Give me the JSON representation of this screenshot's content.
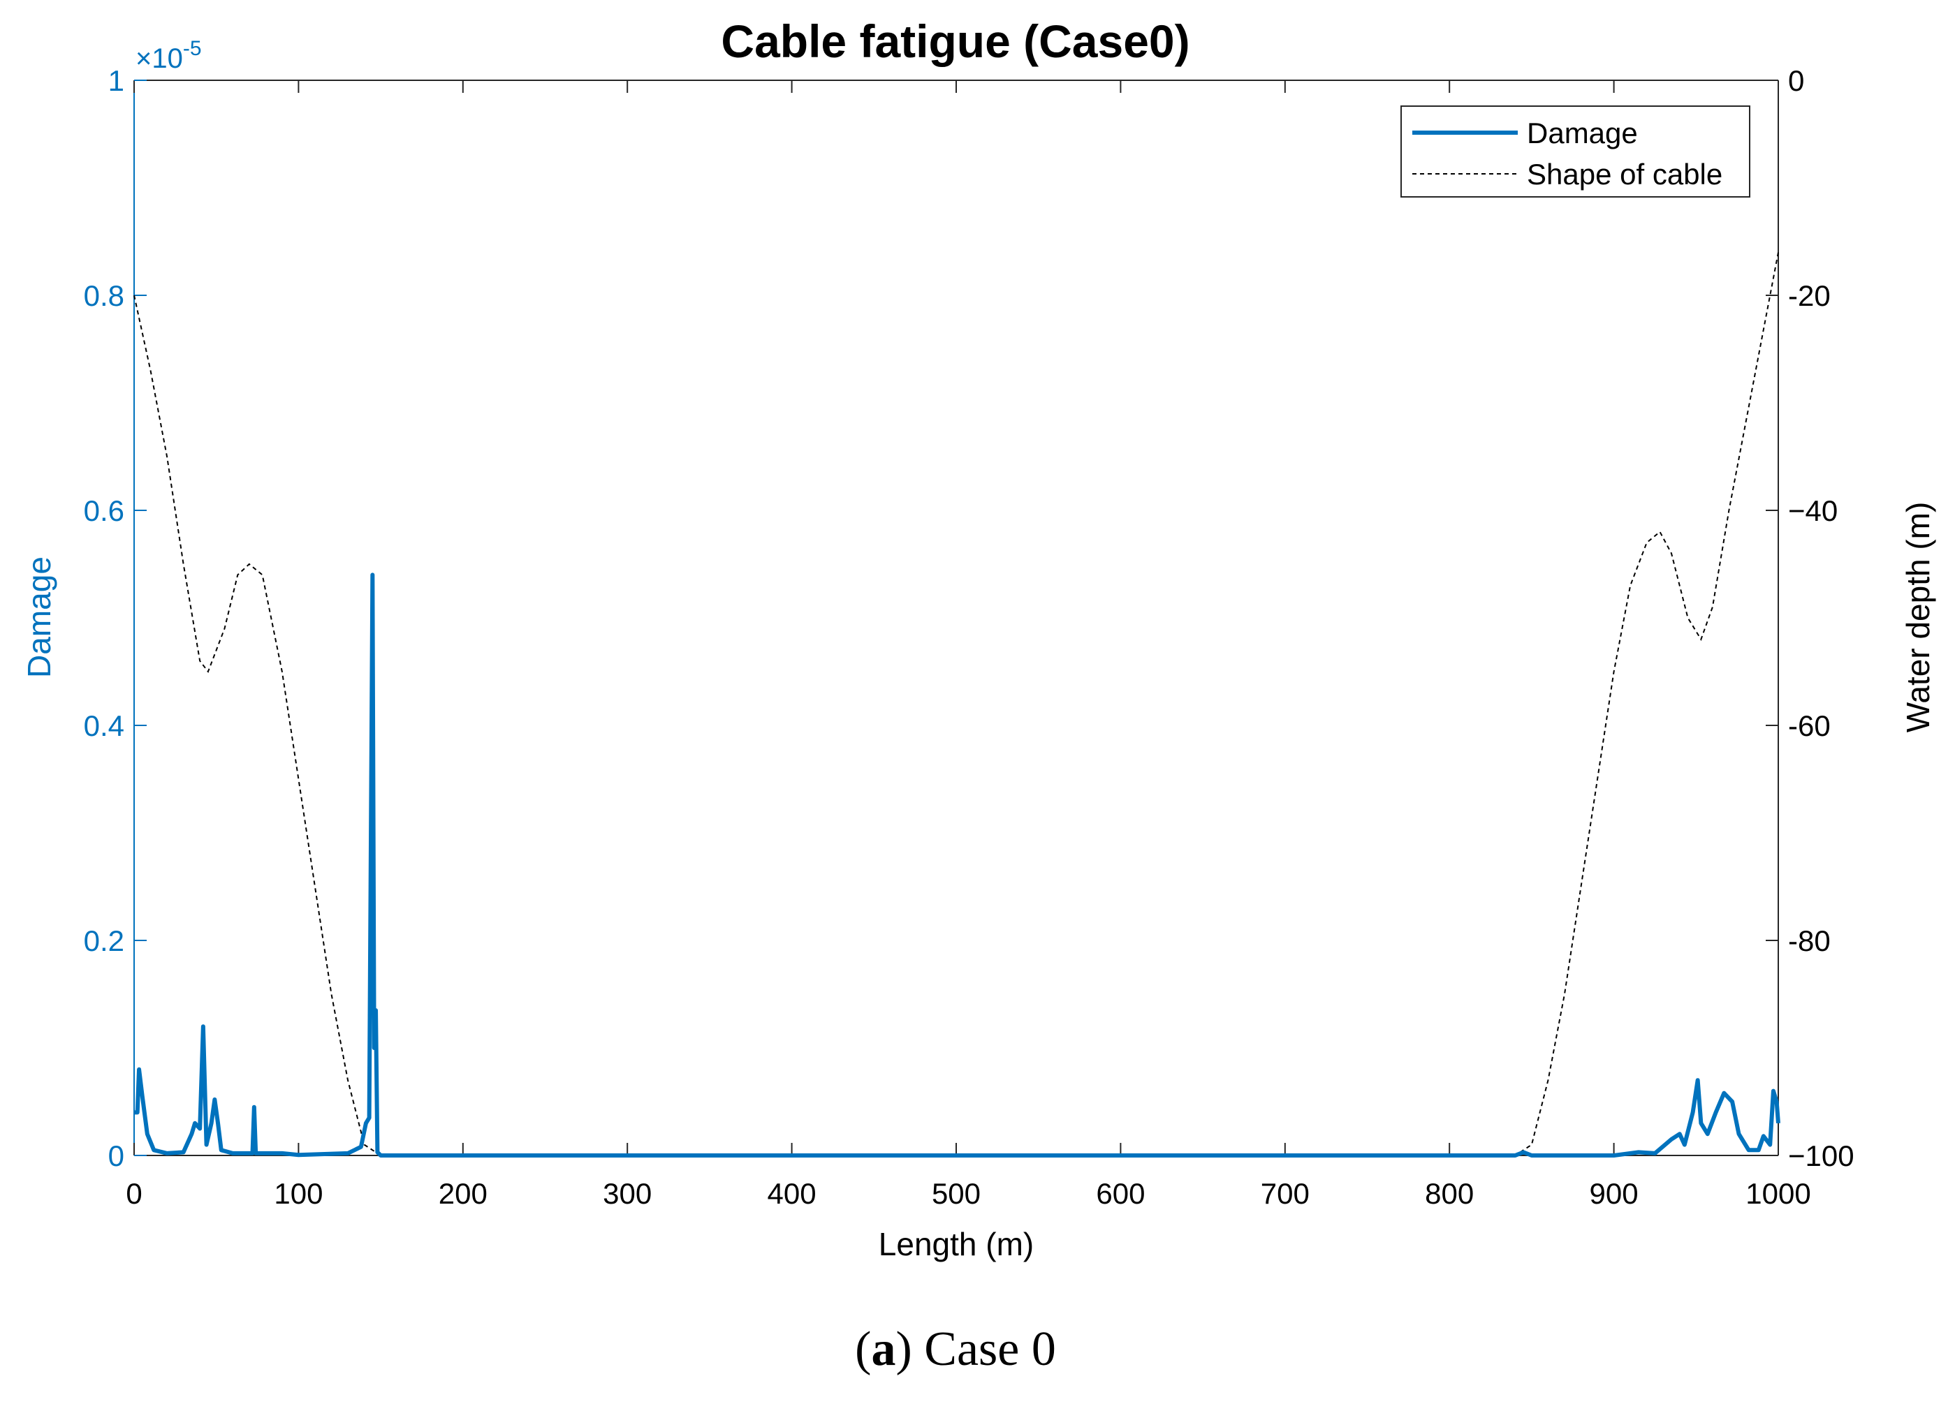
{
  "chart_data": {
    "type": "line",
    "title": "Cable fatigue (Case0)",
    "x_label": "Length (m)",
    "y_label": "Damage",
    "y2_label": "Water depth (m)",
    "y_multiplier": {
      "base": "×10",
      "exponent": "-5"
    },
    "caption_parts": [
      "(",
      "a",
      ") Case 0"
    ],
    "xlim": [
      0,
      1000
    ],
    "xticks": [
      0,
      100,
      200,
      300,
      400,
      500,
      600,
      700,
      800,
      900,
      1000
    ],
    "ylim": [
      0,
      1
    ],
    "yticks": [
      0,
      0.2,
      0.4,
      0.6,
      0.8,
      1
    ],
    "y2lim": [
      -100,
      0
    ],
    "y2ticks": [
      {
        "value": -100,
        "label": "−100"
      },
      -80,
      -60,
      {
        "value": -40,
        "label": "−40"
      },
      -20,
      0
    ],
    "legend": "top-right",
    "y_color": "#0072bd",
    "series": [
      {
        "name": "Damage",
        "color": "#0072bd",
        "style": "solid",
        "x": [
          0,
          2,
          3,
          5,
          8,
          12,
          20,
          30,
          35,
          37,
          40,
          42,
          44,
          47,
          49,
          51,
          53,
          60,
          72,
          73,
          74,
          90,
          100,
          130,
          138,
          141,
          143,
          145,
          146,
          147,
          148,
          150,
          200,
          300,
          400,
          500,
          600,
          700,
          800,
          840,
          845,
          850,
          900,
          915,
          925,
          935,
          940,
          943,
          948,
          951,
          953,
          957,
          962,
          967,
          972,
          976,
          982,
          988,
          991,
          995,
          997,
          999,
          1000
        ],
        "values": [
          0.04,
          0.04,
          0.08,
          0.055,
          0.02,
          0.005,
          0.002,
          0.003,
          0.02,
          0.03,
          0.025,
          0.12,
          0.01,
          0.03,
          0.052,
          0.03,
          0.005,
          0.002,
          0.002,
          0.045,
          0.002,
          0.002,
          0.0005,
          0.002,
          0.008,
          0.03,
          0.035,
          0.54,
          0.1,
          0.135,
          0.003,
          0,
          0,
          0,
          0,
          0,
          0,
          0,
          0,
          0,
          0.003,
          0,
          0,
          0.003,
          0.002,
          0.015,
          0.02,
          0.01,
          0.04,
          0.07,
          0.03,
          0.02,
          0.04,
          0.058,
          0.05,
          0.02,
          0.005,
          0.005,
          0.018,
          0.01,
          0.06,
          0.05,
          0.03
        ]
      },
      {
        "name": "Shape of cable",
        "color": "#000000",
        "style": "dashed",
        "axis": "y2",
        "x": [
          0,
          10,
          20,
          30,
          40,
          45,
          55,
          63,
          70,
          78,
          90,
          100,
          110,
          120,
          130,
          140,
          150,
          200,
          300,
          400,
          500,
          600,
          700,
          800,
          840,
          850,
          860,
          870,
          880,
          890,
          900,
          910,
          920,
          928,
          935,
          945,
          953,
          960,
          970,
          980,
          990,
          1000
        ],
        "values": [
          -20,
          -27,
          -35,
          -45,
          -54,
          -55,
          -51,
          -46,
          -45,
          -46,
          -55,
          -65,
          -75,
          -85,
          -93,
          -99,
          -100,
          -100,
          -100,
          -100,
          -100,
          -100,
          -100,
          -100,
          -100,
          -99,
          -93,
          -85,
          -75,
          -65,
          -55,
          -47,
          -43,
          -42,
          -44,
          -50,
          -52,
          -49,
          -40,
          -32,
          -24,
          -16
        ]
      }
    ]
  }
}
